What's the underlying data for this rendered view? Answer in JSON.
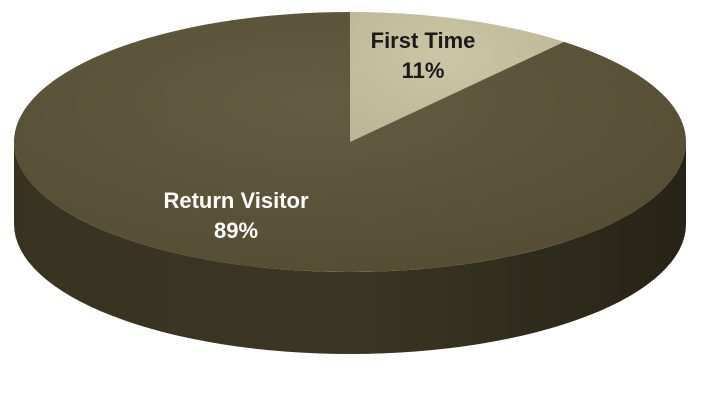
{
  "chart_data": {
    "type": "pie",
    "style": "3d",
    "title": "",
    "categories": [
      "First Time",
      "Return Visitor"
    ],
    "values": [
      11,
      89
    ],
    "value_labels": [
      "11%",
      "89%"
    ],
    "colors": {
      "First Time": "#c8c2a0",
      "Return Visitor": "#5a5236"
    },
    "side_colors": {
      "First Time": "#8e8868",
      "Return Visitor": "#3b3623"
    },
    "label_colors": {
      "First Time": "#1a1a1a",
      "Return Visitor": "#ffffff"
    },
    "start_angle_deg": 0,
    "direction": "clockwise"
  }
}
